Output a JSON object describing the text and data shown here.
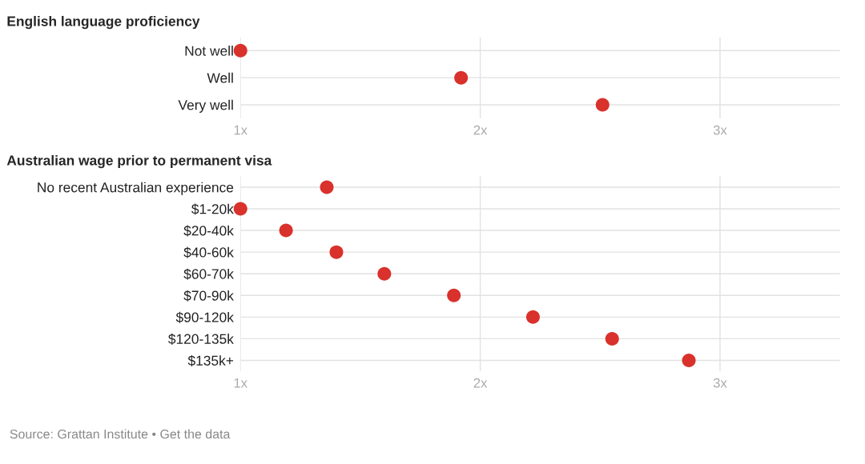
{
  "chart_data": [
    {
      "type": "scatter",
      "orientation": "horizontal",
      "title": "English language proficiency",
      "categories": [
        "Not well",
        "Well",
        "Very well"
      ],
      "values": [
        1.0,
        1.92,
        2.51
      ],
      "color": "#d9312b",
      "marker": "circle",
      "xlim": [
        1,
        3.5
      ],
      "xticks": [
        {
          "value": 1,
          "label": "1x"
        },
        {
          "value": 2,
          "label": "2x"
        },
        {
          "value": 3,
          "label": "3x"
        }
      ],
      "grid": true
    },
    {
      "type": "scatter",
      "orientation": "horizontal",
      "title": "Australian wage prior to permanent visa",
      "categories": [
        "No recent Australian experience",
        "$1-20k",
        "$20-40k",
        "$40-60k",
        "$60-70k",
        "$70-90k",
        "$90-120k",
        "$120-135k",
        "$135k+"
      ],
      "values": [
        1.36,
        1.0,
        1.19,
        1.4,
        1.6,
        1.89,
        2.22,
        2.55,
        2.87
      ],
      "color": "#d9312b",
      "marker": "circle",
      "xlim": [
        1,
        3.5
      ],
      "xticks": [
        {
          "value": 1,
          "label": "1x"
        },
        {
          "value": 2,
          "label": "2x"
        },
        {
          "value": 3,
          "label": "3x"
        }
      ],
      "grid": true,
      "annotations": [
        "Source: Grattan Institute • Get the data"
      ]
    }
  ]
}
